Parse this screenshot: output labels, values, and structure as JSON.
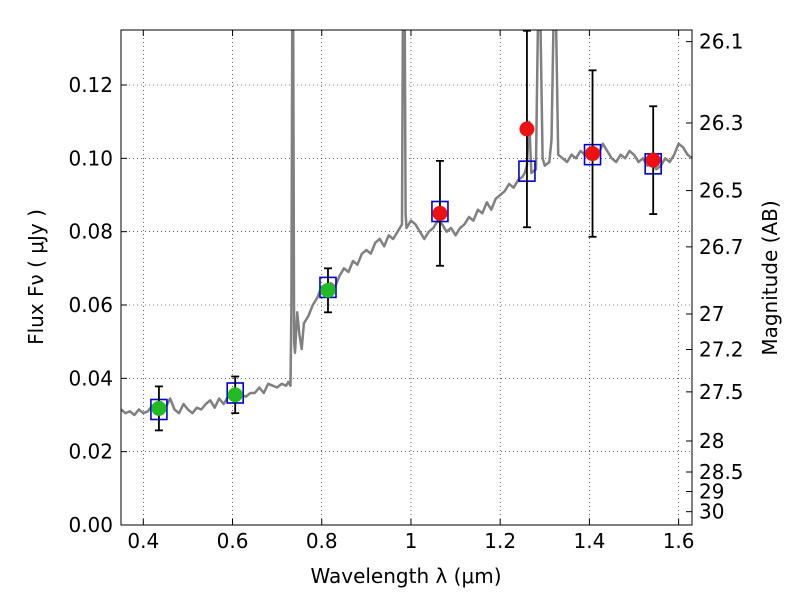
{
  "chart_data": {
    "type": "scatter",
    "xlabel": "Wavelength  λ (μm)",
    "ylabel": "Flux  Fν  ( μJy )",
    "ylabel2": "Magnitude (AB)",
    "xlim": [
      0.35,
      1.63
    ],
    "ylim": [
      0.0,
      0.135
    ],
    "grid": true,
    "x_ticks": [
      {
        "value": 0.4,
        "label": "0.4"
      },
      {
        "value": 0.6,
        "label": "0.6"
      },
      {
        "value": 0.8,
        "label": "0.8"
      },
      {
        "value": 1.0,
        "label": "1"
      },
      {
        "value": 1.2,
        "label": "1.2"
      },
      {
        "value": 1.4,
        "label": "1.4"
      },
      {
        "value": 1.6,
        "label": "1.6"
      }
    ],
    "y_ticks": [
      {
        "value": 0.0,
        "label": "0.00"
      },
      {
        "value": 0.02,
        "label": "0.02"
      },
      {
        "value": 0.04,
        "label": "0.04"
      },
      {
        "value": 0.06,
        "label": "0.06"
      },
      {
        "value": 0.08,
        "label": "0.08"
      },
      {
        "value": 0.1,
        "label": "0.10"
      },
      {
        "value": 0.12,
        "label": "0.12"
      }
    ],
    "mag_ticks": [
      {
        "mag": 26.1,
        "label": "26.1"
      },
      {
        "mag": 26.3,
        "label": "26.3"
      },
      {
        "mag": 26.5,
        "label": "26.5"
      },
      {
        "mag": 26.7,
        "label": "26.7"
      },
      {
        "mag": 27.0,
        "label": "27"
      },
      {
        "mag": 27.2,
        "label": "27.2"
      },
      {
        "mag": 27.5,
        "label": "27.5"
      },
      {
        "mag": 28.0,
        "label": "28"
      },
      {
        "mag": 28.5,
        "label": "28.5"
      },
      {
        "mag": 29.0,
        "label": "29"
      },
      {
        "mag": 30.0,
        "label": "30"
      }
    ],
    "colors": {
      "sed": "#808080",
      "model": "#0000cc",
      "optical": "#22bb22",
      "nir": "#ee1111",
      "errorbar": "#000000"
    },
    "sed_curve": [
      [
        0.35,
        0.0315
      ],
      [
        0.36,
        0.0305
      ],
      [
        0.37,
        0.031
      ],
      [
        0.38,
        0.03
      ],
      [
        0.39,
        0.0315
      ],
      [
        0.4,
        0.0305
      ],
      [
        0.41,
        0.031
      ],
      [
        0.42,
        0.0325
      ],
      [
        0.43,
        0.031
      ],
      [
        0.44,
        0.0335
      ],
      [
        0.45,
        0.032
      ],
      [
        0.46,
        0.0345
      ],
      [
        0.47,
        0.0315
      ],
      [
        0.48,
        0.0305
      ],
      [
        0.49,
        0.033
      ],
      [
        0.5,
        0.0315
      ],
      [
        0.51,
        0.0305
      ],
      [
        0.52,
        0.032
      ],
      [
        0.53,
        0.0315
      ],
      [
        0.54,
        0.033
      ],
      [
        0.55,
        0.034
      ],
      [
        0.56,
        0.032
      ],
      [
        0.57,
        0.0345
      ],
      [
        0.58,
        0.033
      ],
      [
        0.59,
        0.035
      ],
      [
        0.6,
        0.036
      ],
      [
        0.61,
        0.034
      ],
      [
        0.62,
        0.0355
      ],
      [
        0.63,
        0.035
      ],
      [
        0.64,
        0.036
      ],
      [
        0.65,
        0.036
      ],
      [
        0.66,
        0.0375
      ],
      [
        0.67,
        0.036
      ],
      [
        0.68,
        0.0385
      ],
      [
        0.69,
        0.038
      ],
      [
        0.7,
        0.0375
      ],
      [
        0.71,
        0.0385
      ],
      [
        0.72,
        0.038
      ],
      [
        0.725,
        0.039
      ],
      [
        0.73,
        0.038
      ],
      [
        0.732,
        0.06
      ],
      [
        0.734,
        0.14
      ],
      [
        0.736,
        0.14
      ],
      [
        0.738,
        0.05
      ],
      [
        0.74,
        0.047
      ],
      [
        0.745,
        0.058
      ],
      [
        0.75,
        0.052
      ],
      [
        0.755,
        0.048
      ],
      [
        0.76,
        0.055
      ],
      [
        0.77,
        0.057
      ],
      [
        0.78,
        0.06
      ],
      [
        0.79,
        0.062
      ],
      [
        0.8,
        0.065
      ],
      [
        0.81,
        0.063
      ],
      [
        0.82,
        0.066
      ],
      [
        0.83,
        0.065
      ],
      [
        0.84,
        0.068
      ],
      [
        0.85,
        0.07
      ],
      [
        0.86,
        0.069
      ],
      [
        0.87,
        0.072
      ],
      [
        0.88,
        0.071
      ],
      [
        0.89,
        0.074
      ],
      [
        0.9,
        0.075
      ],
      [
        0.91,
        0.074
      ],
      [
        0.92,
        0.077
      ],
      [
        0.93,
        0.078
      ],
      [
        0.94,
        0.076
      ],
      [
        0.95,
        0.079
      ],
      [
        0.96,
        0.078
      ],
      [
        0.97,
        0.08
      ],
      [
        0.98,
        0.082
      ],
      [
        0.982,
        0.14
      ],
      [
        0.986,
        0.14
      ],
      [
        0.988,
        0.085
      ],
      [
        0.99,
        0.081
      ],
      [
        1.0,
        0.083
      ],
      [
        1.01,
        0.082
      ],
      [
        1.02,
        0.08
      ],
      [
        1.03,
        0.078
      ],
      [
        1.04,
        0.08
      ],
      [
        1.05,
        0.081
      ],
      [
        1.06,
        0.083
      ],
      [
        1.07,
        0.082
      ],
      [
        1.08,
        0.08
      ],
      [
        1.09,
        0.081
      ],
      [
        1.1,
        0.079
      ],
      [
        1.11,
        0.081
      ],
      [
        1.12,
        0.082
      ],
      [
        1.13,
        0.084
      ],
      [
        1.14,
        0.083
      ],
      [
        1.15,
        0.086
      ],
      [
        1.16,
        0.085
      ],
      [
        1.17,
        0.088
      ],
      [
        1.18,
        0.086
      ],
      [
        1.19,
        0.089
      ],
      [
        1.2,
        0.09
      ],
      [
        1.21,
        0.091
      ],
      [
        1.22,
        0.093
      ],
      [
        1.23,
        0.092
      ],
      [
        1.24,
        0.094
      ],
      [
        1.25,
        0.095
      ],
      [
        1.255,
        0.096
      ],
      [
        1.26,
        0.098
      ],
      [
        1.265,
        0.11
      ],
      [
        1.27,
        0.096
      ],
      [
        1.28,
        0.097
      ],
      [
        1.285,
        0.14
      ],
      [
        1.29,
        0.14
      ],
      [
        1.295,
        0.1
      ],
      [
        1.3,
        0.098
      ],
      [
        1.31,
        0.099
      ],
      [
        1.315,
        0.105
      ],
      [
        1.32,
        0.14
      ],
      [
        1.325,
        0.14
      ],
      [
        1.33,
        0.101
      ],
      [
        1.34,
        0.1
      ],
      [
        1.35,
        0.099
      ],
      [
        1.36,
        0.101
      ],
      [
        1.37,
        0.1
      ],
      [
        1.38,
        0.102
      ],
      [
        1.39,
        0.101
      ],
      [
        1.4,
        0.1
      ],
      [
        1.41,
        0.103
      ],
      [
        1.42,
        0.101
      ],
      [
        1.43,
        0.104
      ],
      [
        1.44,
        0.102
      ],
      [
        1.45,
        0.1
      ],
      [
        1.46,
        0.099
      ],
      [
        1.47,
        0.101
      ],
      [
        1.48,
        0.1
      ],
      [
        1.49,
        0.102
      ],
      [
        1.5,
        0.101
      ],
      [
        1.51,
        0.099
      ],
      [
        1.52,
        0.1
      ],
      [
        1.53,
        0.098
      ],
      [
        1.54,
        0.099
      ],
      [
        1.55,
        0.097
      ],
      [
        1.56,
        0.098
      ],
      [
        1.57,
        0.1
      ],
      [
        1.58,
        0.099
      ],
      [
        1.59,
        0.101
      ],
      [
        1.6,
        0.104
      ],
      [
        1.61,
        0.103
      ],
      [
        1.62,
        0.101
      ],
      [
        1.63,
        0.1
      ]
    ],
    "model_points": [
      {
        "x": 0.435,
        "y": 0.0315
      },
      {
        "x": 0.606,
        "y": 0.036
      },
      {
        "x": 0.814,
        "y": 0.0648
      },
      {
        "x": 1.065,
        "y": 0.0855
      },
      {
        "x": 1.26,
        "y": 0.0965
      },
      {
        "x": 1.407,
        "y": 0.101
      },
      {
        "x": 1.543,
        "y": 0.0985
      }
    ],
    "observed_points": [
      {
        "x": 0.435,
        "y": 0.0318,
        "err": 0.006,
        "band": "optical"
      },
      {
        "x": 0.606,
        "y": 0.0355,
        "err": 0.005,
        "band": "optical"
      },
      {
        "x": 0.814,
        "y": 0.064,
        "err": 0.006,
        "band": "optical"
      },
      {
        "x": 1.065,
        "y": 0.085,
        "err": 0.0143,
        "band": "nir"
      },
      {
        "x": 1.26,
        "y": 0.108,
        "err": 0.0268,
        "band": "nir"
      },
      {
        "x": 1.407,
        "y": 0.1013,
        "err": 0.0227,
        "band": "nir"
      },
      {
        "x": 1.543,
        "y": 0.0995,
        "err": 0.0147,
        "band": "nir"
      }
    ]
  }
}
